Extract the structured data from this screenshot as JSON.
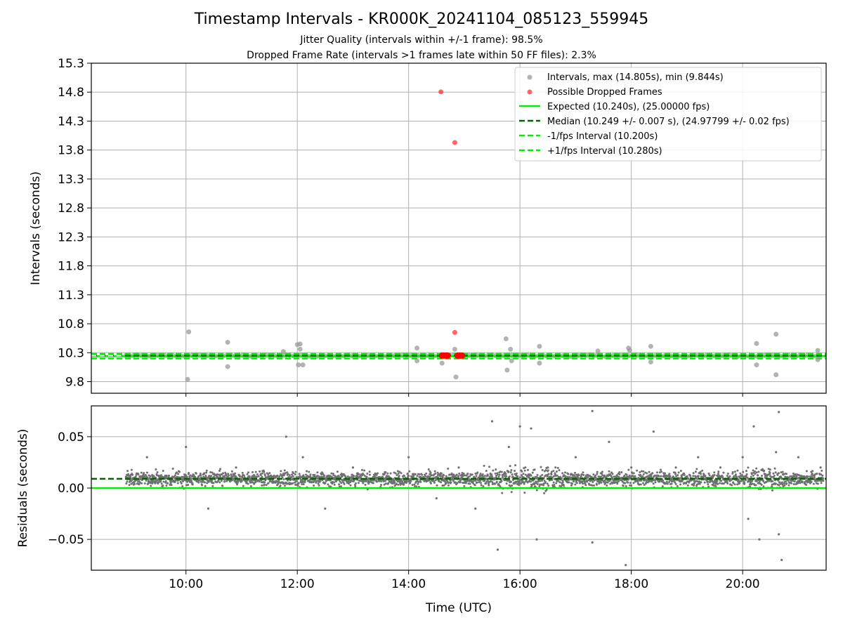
{
  "title": "Timestamp Intervals - KR000K_20241104_085123_559945",
  "subtitle_1": "Jitter Quality (intervals within +/-1 frame): 98.5%",
  "subtitle_2": "Dropped Frame Rate (intervals >1 frames late within 50 FF files): 2.3%",
  "colors": {
    "intervals": "#9a9a9a",
    "dropped": "#ff0000",
    "expected": "#00ee00",
    "median": "#006400",
    "residuals": "#707070",
    "grid": "#b0b0b0"
  },
  "chart_data": [
    {
      "type": "scatter",
      "ylabel": "Intervals (seconds)",
      "xlim_hours": [
        8.3,
        21.5
      ],
      "ylim": [
        9.6,
        15.3
      ],
      "yticks": [
        "15.3",
        "14.8",
        "14.3",
        "13.8",
        "13.3",
        "12.8",
        "12.3",
        "11.8",
        "11.3",
        "10.8",
        "10.3",
        "9.8"
      ],
      "ytick_values": [
        15.3,
        14.8,
        14.3,
        13.8,
        13.3,
        12.8,
        12.3,
        11.8,
        11.3,
        10.8,
        10.3,
        9.8
      ],
      "grid": true,
      "legend_position": "top-right",
      "legend": [
        "Intervals, max (14.805s), min (9.844s)",
        "Possible Dropped Frames",
        "Expected (10.240s), (25.00000 fps)",
        "Median (10.249 +/- 0.007 s), (24.97799 +/- 0.02 fps)",
        "-1/fps Interval (10.200s)",
        "+1/fps Interval (10.280s)"
      ],
      "lines": {
        "expected": 10.24,
        "median": 10.249,
        "minus_one_frame": 10.2,
        "plus_one_frame": 10.28
      },
      "series": [
        {
          "name": "Intervals, max (14.805s), min (9.844s)",
          "x_hours": [
            10.05,
            10.03,
            10.75,
            10.75,
            11.75,
            12.0,
            12.02,
            12.05,
            12.1,
            12.05,
            14.15,
            14.15,
            14.6,
            14.83,
            14.85,
            15.75,
            15.77,
            15.83,
            15.85,
            16.35,
            16.35,
            17.4,
            17.95,
            17.97,
            18.35,
            18.35,
            20.25,
            20.25,
            20.6,
            20.6,
            21.35,
            21.35
          ],
          "y": [
            10.66,
            9.84,
            10.48,
            10.06,
            10.32,
            10.44,
            10.09,
            10.45,
            10.09,
            10.36,
            10.38,
            10.16,
            10.12,
            10.36,
            9.88,
            10.54,
            10.0,
            10.36,
            10.16,
            10.41,
            10.12,
            10.33,
            10.38,
            10.34,
            10.41,
            10.14,
            10.46,
            10.09,
            10.62,
            9.92,
            10.34,
            10.18
          ]
        },
        {
          "name": "Possible Dropped Frames",
          "x_hours": [
            14.58,
            14.83,
            14.83,
            14.6,
            14.63,
            14.67,
            14.7,
            14.88,
            14.92,
            14.96
          ],
          "y": [
            14.805,
            13.93,
            10.65,
            10.25,
            10.25,
            10.25,
            10.25,
            10.25,
            10.25,
            10.25
          ]
        }
      ]
    },
    {
      "type": "scatter",
      "ylabel": "Residuals (seconds)",
      "xlabel": "Time (UTC)",
      "xlim_hours": [
        8.3,
        21.5
      ],
      "xticks": [
        "10:00",
        "12:00",
        "14:00",
        "16:00",
        "18:00",
        "20:00"
      ],
      "xtick_hours": [
        10,
        12,
        14,
        16,
        18,
        20
      ],
      "ylim": [
        -0.08,
        0.08
      ],
      "yticks": [
        "0.05",
        "0.00",
        "−0.05"
      ],
      "ytick_values": [
        0.05,
        0.0,
        -0.05
      ],
      "grid": true,
      "lines": {
        "zero": 0.0,
        "median_offset": 0.009
      },
      "series": [
        {
          "name": "Residuals",
          "x_hours": [
            8.95,
            9.3,
            9.6,
            10.0,
            10.4,
            10.9,
            11.4,
            11.8,
            12.1,
            12.5,
            13.0,
            13.5,
            14.0,
            14.5,
            14.9,
            15.2,
            15.5,
            15.6,
            15.8,
            16.0,
            16.2,
            16.3,
            16.5,
            17.0,
            17.3,
            17.3,
            17.6,
            17.9,
            18.0,
            18.4,
            18.8,
            19.2,
            19.6,
            20.0,
            20.1,
            20.2,
            20.3,
            20.6,
            20.65,
            20.65,
            20.7,
            21.0,
            21.4
          ],
          "y": [
            0.01,
            0.03,
            0.0,
            0.04,
            -0.02,
            0.02,
            0.0,
            0.05,
            0.03,
            -0.02,
            0.02,
            0.0,
            0.03,
            -0.01,
            0.02,
            -0.02,
            0.065,
            -0.06,
            0.04,
            0.06,
            0.058,
            -0.05,
            0.02,
            0.03,
            0.075,
            -0.053,
            0.045,
            -0.075,
            0.02,
            0.055,
            0.02,
            0.03,
            0.02,
            0.03,
            -0.03,
            0.06,
            -0.05,
            0.035,
            0.074,
            -0.045,
            -0.07,
            0.03,
            0.02
          ]
        }
      ]
    }
  ]
}
